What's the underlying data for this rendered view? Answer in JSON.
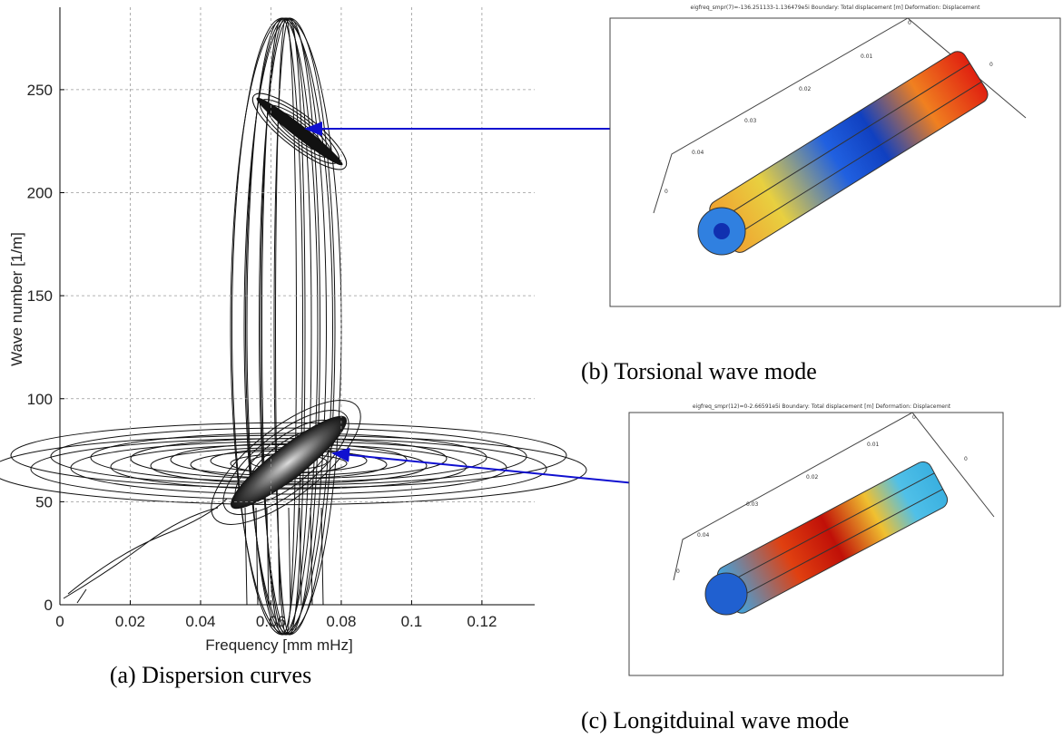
{
  "chart_data": {
    "type": "contour",
    "x_label": "Frequency [mm mHz]",
    "y_label": "Wave number [1/m]",
    "xlim": [
      0,
      0.135
    ],
    "ylim": [
      0,
      290
    ],
    "xticks": [
      0,
      0.02,
      0.04,
      0.06,
      0.08,
      0.1,
      0.12
    ],
    "yticks": [
      0,
      50,
      100,
      150,
      200,
      250
    ],
    "grid": true,
    "caption": "(a) Dispersion curves"
  },
  "panels": [
    {
      "caption": "(b) Torsional wave mode",
      "header": "eigfreq_smpr(7)=-136.251133-1.136479e5i   Boundary: Total displacement [m]   Deformation: Displacement",
      "axis_labels": [
        "0",
        "0.01",
        "0.02",
        "0.03",
        "0.04",
        "0",
        "0"
      ]
    },
    {
      "caption": "(c) Longitduinal wave mode",
      "header": "eigfreq_smpr(12)=0-2.66591e5i   Boundary: Total displacement [m]   Deformation: Displacement",
      "axis_labels": [
        "0",
        "0.01",
        "0.02",
        "0.03",
        "0.04",
        "0",
        "0"
      ]
    }
  ]
}
